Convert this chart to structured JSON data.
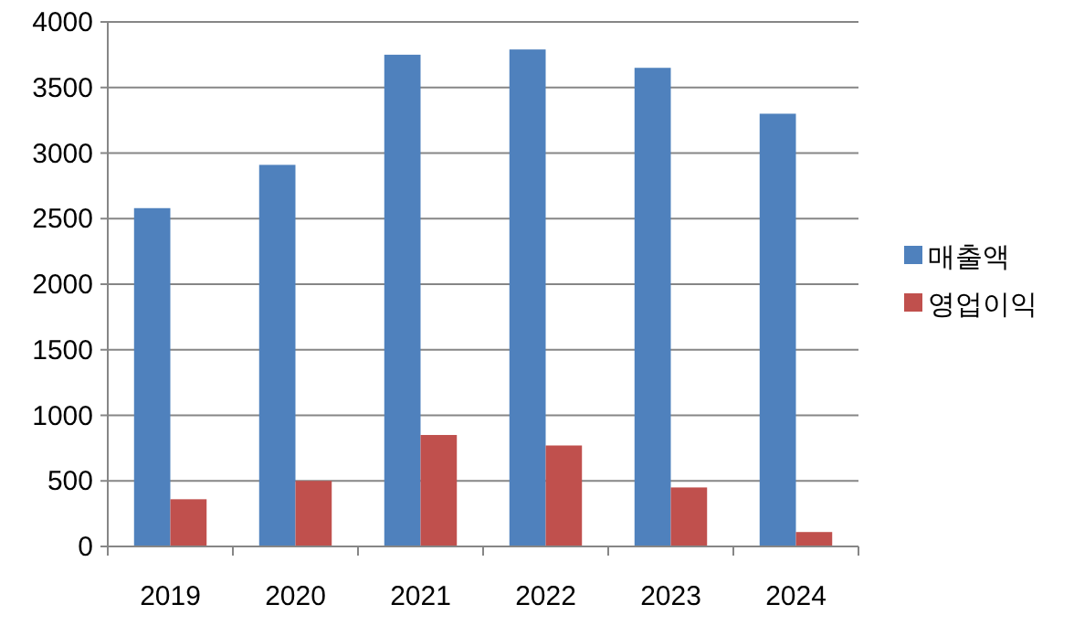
{
  "chart_data": {
    "type": "bar",
    "categories": [
      "2019",
      "2020",
      "2021",
      "2022",
      "2023",
      "2024"
    ],
    "series": [
      {
        "name": "매출액",
        "color": "#4f81bd",
        "values": [
          2580,
          2910,
          3750,
          3790,
          3650,
          3300
        ]
      },
      {
        "name": "영업이익",
        "color": "#c0504d",
        "values": [
          360,
          500,
          850,
          770,
          450,
          110
        ]
      }
    ],
    "ylim": [
      0,
      4000
    ],
    "yticks": [
      0,
      500,
      1000,
      1500,
      2000,
      2500,
      3000,
      3500,
      4000
    ],
    "grid": "y",
    "legend": "right"
  }
}
